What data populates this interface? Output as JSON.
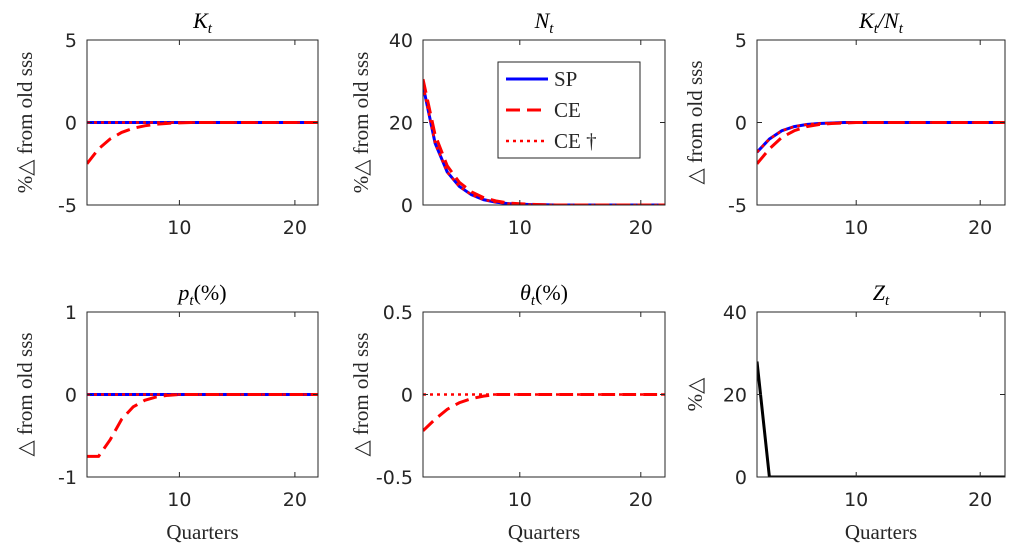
{
  "chart_data": [
    {
      "type": "line",
      "title": [
        "K",
        "t"
      ],
      "ylabel": "%△ from old sss",
      "x": [
        2,
        3,
        4,
        5,
        6,
        7,
        8,
        9,
        10,
        11,
        12,
        13,
        14,
        15,
        16,
        17,
        18,
        19,
        20,
        21,
        22
      ],
      "xlim": [
        2,
        22
      ],
      "xticks": [
        10,
        20
      ],
      "ylim": [
        -5,
        5
      ],
      "yticks": [
        -5,
        0,
        5
      ],
      "series": [
        {
          "name": "SP",
          "color": "#0000ff",
          "style": "solid",
          "values": [
            0,
            0,
            0,
            0,
            0,
            0,
            0,
            0,
            0,
            0,
            0,
            0,
            0,
            0,
            0,
            0,
            0,
            0,
            0,
            0,
            0
          ]
        },
        {
          "name": "CE",
          "color": "#ff0000",
          "style": "dashed",
          "values": [
            -2.5,
            -1.6,
            -1.0,
            -0.6,
            -0.35,
            -0.2,
            -0.1,
            -0.05,
            -0.02,
            0,
            0,
            0,
            0,
            0,
            0,
            0,
            0,
            0,
            0,
            0,
            0
          ]
        },
        {
          "name": "CE †",
          "color": "#ff0000",
          "style": "dotted",
          "values": [
            0,
            0,
            0,
            0,
            0,
            0,
            0,
            0,
            0,
            0,
            0,
            0,
            0,
            0,
            0,
            0,
            0,
            0,
            0,
            0,
            0
          ]
        }
      ]
    },
    {
      "type": "line",
      "title": [
        "N",
        "t"
      ],
      "ylabel": "%△ from old sss",
      "legend": "upper right",
      "x": [
        2,
        3,
        4,
        5,
        6,
        7,
        8,
        9,
        10,
        11,
        12,
        13,
        14,
        15,
        16,
        17,
        18,
        19,
        20,
        21,
        22
      ],
      "xlim": [
        2,
        22
      ],
      "xticks": [
        10,
        20
      ],
      "ylim": [
        0,
        40
      ],
      "yticks": [
        0,
        20,
        40
      ],
      "series": [
        {
          "name": "SP",
          "color": "#0000ff",
          "style": "solid",
          "values": [
            29,
            15,
            8,
            4.5,
            2.5,
            1.3,
            0.7,
            0.35,
            0.2,
            0.1,
            0.05,
            0,
            0,
            0,
            0,
            0,
            0,
            0,
            0,
            0,
            0
          ]
        },
        {
          "name": "CE",
          "color": "#ff0000",
          "style": "dashed",
          "values": [
            30.5,
            17,
            9.5,
            5.5,
            3.2,
            1.8,
            1,
            0.5,
            0.3,
            0.15,
            0.05,
            0,
            0,
            0,
            0,
            0,
            0,
            0,
            0,
            0,
            0
          ]
        },
        {
          "name": "CE †",
          "color": "#ff0000",
          "style": "dotted",
          "values": [
            29,
            15,
            8,
            4.5,
            2.5,
            1.3,
            0.7,
            0.35,
            0.2,
            0.1,
            0.05,
            0,
            0,
            0,
            0,
            0,
            0,
            0,
            0,
            0,
            0
          ]
        }
      ]
    },
    {
      "type": "line",
      "title": [
        "K",
        "t",
        "/N",
        "t"
      ],
      "ylabel": "△ from old sss",
      "x": [
        2,
        3,
        4,
        5,
        6,
        7,
        8,
        9,
        10,
        11,
        12,
        13,
        14,
        15,
        16,
        17,
        18,
        19,
        20,
        21,
        22
      ],
      "xlim": [
        2,
        22
      ],
      "xticks": [
        10,
        20
      ],
      "ylim": [
        -5,
        5
      ],
      "yticks": [
        -5,
        0,
        5
      ],
      "series": [
        {
          "name": "SP",
          "color": "#0000ff",
          "style": "solid",
          "values": [
            -1.8,
            -1,
            -0.5,
            -0.25,
            -0.12,
            -0.06,
            -0.03,
            0,
            0,
            0,
            0,
            0,
            0,
            0,
            0,
            0,
            0,
            0,
            0,
            0,
            0
          ]
        },
        {
          "name": "CE",
          "color": "#ff0000",
          "style": "dashed",
          "values": [
            -2.5,
            -1.6,
            -0.9,
            -0.5,
            -0.25,
            -0.12,
            -0.06,
            -0.03,
            0,
            0,
            0,
            0,
            0,
            0,
            0,
            0,
            0,
            0,
            0,
            0,
            0
          ]
        },
        {
          "name": "CE †",
          "color": "#ff0000",
          "style": "dotted",
          "values": [
            -1.8,
            -1,
            -0.5,
            -0.25,
            -0.12,
            -0.06,
            -0.03,
            0,
            0,
            0,
            0,
            0,
            0,
            0,
            0,
            0,
            0,
            0,
            0,
            0,
            0
          ]
        }
      ]
    },
    {
      "type": "line",
      "title": [
        "p",
        "t",
        "(%)"
      ],
      "ylabel": "△ from old sss",
      "xlabel": "Quarters",
      "x": [
        2,
        3,
        4,
        5,
        6,
        7,
        8,
        9,
        10,
        11,
        12,
        13,
        14,
        15,
        16,
        17,
        18,
        19,
        20,
        21,
        22
      ],
      "xlim": [
        2,
        22
      ],
      "xticks": [
        10,
        20
      ],
      "ylim": [
        -1,
        1
      ],
      "yticks": [
        -1,
        0,
        1
      ],
      "series": [
        {
          "name": "SP",
          "color": "#0000ff",
          "style": "solid",
          "values": [
            0,
            0,
            0,
            0,
            0,
            0,
            0,
            0,
            0,
            0,
            0,
            0,
            0,
            0,
            0,
            0,
            0,
            0,
            0,
            0,
            0
          ]
        },
        {
          "name": "CE",
          "color": "#ff0000",
          "style": "dashed",
          "values": [
            -0.75,
            -0.75,
            -0.55,
            -0.3,
            -0.15,
            -0.07,
            -0.03,
            -0.01,
            0,
            0,
            0,
            0,
            0,
            0,
            0,
            0,
            0,
            0,
            0,
            0,
            0
          ]
        },
        {
          "name": "CE †",
          "color": "#ff0000",
          "style": "dotted",
          "values": [
            0,
            0,
            0,
            0,
            0,
            0,
            0,
            0,
            0,
            0,
            0,
            0,
            0,
            0,
            0,
            0,
            0,
            0,
            0,
            0,
            0
          ]
        }
      ]
    },
    {
      "type": "line",
      "title": [
        "θ",
        "t",
        "(%)"
      ],
      "ylabel": "△ from old sss",
      "xlabel": "Quarters",
      "x": [
        2,
        3,
        4,
        5,
        6,
        7,
        8,
        9,
        10,
        11,
        12,
        13,
        14,
        15,
        16,
        17,
        18,
        19,
        20,
        21,
        22
      ],
      "xlim": [
        2,
        22
      ],
      "xticks": [
        10,
        20
      ],
      "ylim": [
        -0.5,
        0.5
      ],
      "yticks": [
        -0.5,
        0,
        0.5
      ],
      "series": [
        {
          "name": "CE",
          "color": "#ff0000",
          "style": "dashed",
          "values": [
            -0.22,
            -0.15,
            -0.09,
            -0.05,
            -0.025,
            -0.01,
            0,
            0,
            0,
            0,
            0,
            0,
            0,
            0,
            0,
            0,
            0,
            0,
            0,
            0,
            0
          ]
        },
        {
          "name": "CE †",
          "color": "#ff0000",
          "style": "dotted",
          "values": [
            0,
            0,
            0,
            0,
            0,
            0,
            0,
            0,
            0,
            0,
            0,
            0,
            0,
            0,
            0,
            0,
            0,
            0,
            0,
            0,
            0
          ]
        }
      ]
    },
    {
      "type": "line",
      "title": [
        "Z",
        "t"
      ],
      "ylabel": "%△",
      "xlabel": "Quarters",
      "x": [
        2,
        3,
        4,
        5,
        6,
        7,
        8,
        9,
        10,
        11,
        12,
        13,
        14,
        15,
        16,
        17,
        18,
        19,
        20,
        21,
        22
      ],
      "xlim": [
        2,
        22
      ],
      "xticks": [
        10,
        20
      ],
      "ylim": [
        0,
        40
      ],
      "yticks": [
        0,
        20,
        40
      ],
      "series": [
        {
          "color": "#000000",
          "style": "solid",
          "values": [
            28,
            0,
            0,
            0,
            0,
            0,
            0,
            0,
            0,
            0,
            0,
            0,
            0,
            0,
            0,
            0,
            0,
            0,
            0,
            0,
            0
          ]
        }
      ]
    }
  ]
}
